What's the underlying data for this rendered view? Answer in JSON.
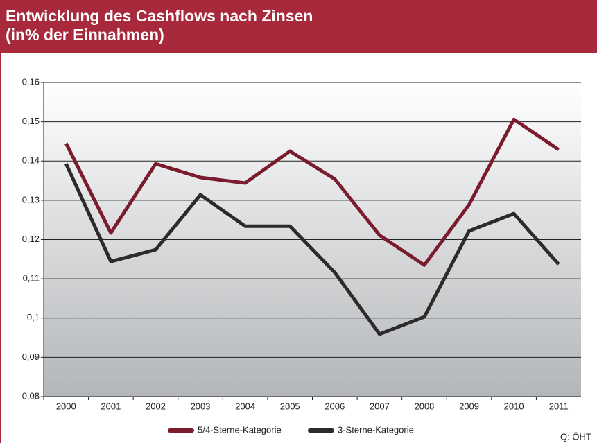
{
  "chart_data": {
    "type": "line",
    "title": "Entwicklung des Cashflows nach Zinsen",
    "subtitle": "(in% der Einnahmen)",
    "source": "Q: ÖHT",
    "categories": [
      "2000",
      "2001",
      "2002",
      "2003",
      "2004",
      "2005",
      "2006",
      "2007",
      "2008",
      "2009",
      "2010",
      "2011"
    ],
    "series": [
      {
        "name": "5/4-Sterne-Kategorie",
        "color": "#7b1c2e",
        "values": [
          0.1445,
          0.1217,
          0.1393,
          0.1358,
          0.1344,
          0.1425,
          0.1354,
          0.1211,
          0.1135,
          0.1289,
          0.1506,
          0.1429
        ]
      },
      {
        "name": "3-Sterne-Kategorie",
        "color": "#2b2b2b",
        "values": [
          0.1393,
          0.1144,
          0.1174,
          0.1314,
          0.1234,
          0.1234,
          0.1116,
          0.0959,
          0.1003,
          0.1222,
          0.1266,
          0.1137
        ]
      }
    ],
    "ylim": [
      0.08,
      0.16
    ],
    "yticks": [
      {
        "value": 0.08,
        "label": "0,08"
      },
      {
        "value": 0.09,
        "label": "0,09"
      },
      {
        "value": 0.1,
        "label": "0,1"
      },
      {
        "value": 0.11,
        "label": "0,11"
      },
      {
        "value": 0.12,
        "label": "0,12"
      },
      {
        "value": 0.13,
        "label": "0,13"
      },
      {
        "value": 0.14,
        "label": "0,14"
      },
      {
        "value": 0.15,
        "label": "0,15"
      },
      {
        "value": 0.16,
        "label": "0,16"
      }
    ],
    "grid": true,
    "legend": "bottom"
  }
}
